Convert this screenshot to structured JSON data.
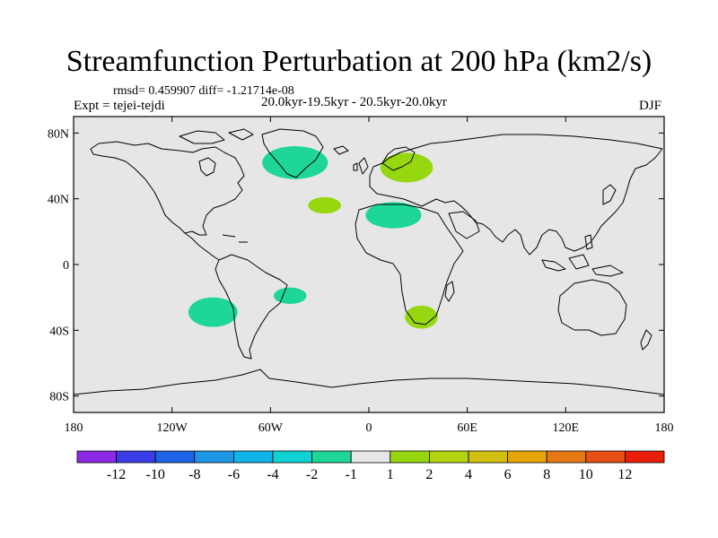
{
  "title": "Streamfunction Perturbation at 200 hPa (km2/s)",
  "stats": "rmsd= 0.459907 diff= -1.21714e-08",
  "experiment": "Expt = tejei-tejdi",
  "period": "20.0kyr-19.5kyr - 20.5kyr-20.0kyr",
  "season": "DJF",
  "map": {
    "lat_ticks": [
      {
        "lat": 80,
        "label": "80N"
      },
      {
        "lat": 40,
        "label": "40N"
      },
      {
        "lat": 0,
        "label": "0"
      },
      {
        "lat": -40,
        "label": "40S"
      },
      {
        "lat": -80,
        "label": "80S"
      }
    ],
    "lon_ticks": [
      {
        "lon": -180,
        "label": "180"
      },
      {
        "lon": -120,
        "label": "120W"
      },
      {
        "lon": -60,
        "label": "60W"
      },
      {
        "lon": 0,
        "label": "0"
      },
      {
        "lon": 60,
        "label": "60E"
      },
      {
        "lon": 120,
        "label": "120E"
      },
      {
        "lon": 180,
        "label": "180"
      }
    ],
    "background_color": "#e6e6e6",
    "anomalies": [
      {
        "name": "north-atlantic-negative",
        "lon": -45,
        "lat": 62,
        "rlon": 20,
        "rlat": 10,
        "color": "#1ed696"
      },
      {
        "name": "europe-positive",
        "lon": 23,
        "lat": 59,
        "rlon": 16,
        "rlat": 9,
        "color": "#96d70f"
      },
      {
        "name": "mid-atlantic-positive",
        "lon": -27,
        "lat": 36,
        "rlon": 10,
        "rlat": 5,
        "color": "#96d70f"
      },
      {
        "name": "north-africa-negative",
        "lon": 15,
        "lat": 30,
        "rlon": 17,
        "rlat": 8,
        "color": "#1ed696"
      },
      {
        "name": "southeast-pacific-negative",
        "lon": -95,
        "lat": -29,
        "rlon": 15,
        "rlat": 9,
        "color": "#1ed696"
      },
      {
        "name": "south-atlantic-negative",
        "lon": -48,
        "lat": -19,
        "rlon": 10,
        "rlat": 5,
        "color": "#1ed696"
      },
      {
        "name": "southern-africa-positive",
        "lon": 32,
        "lat": -32,
        "rlon": 10,
        "rlat": 7,
        "color": "#96d70f"
      }
    ]
  },
  "colorbar": {
    "colors": [
      "#8c28e6",
      "#3c3ce6",
      "#1e64e6",
      "#1e96e6",
      "#10b4e6",
      "#10d2d2",
      "#1ed696",
      "#e6e6e6",
      "#96d70f",
      "#b4d20f",
      "#d2be0f",
      "#e6a50a",
      "#e67814",
      "#e65014",
      "#e61e0a"
    ],
    "labels": [
      "-12",
      "-10",
      "-8",
      "-6",
      "-4",
      "-2",
      "-1",
      "1",
      "2",
      "4",
      "6",
      "8",
      "10",
      "12"
    ]
  }
}
